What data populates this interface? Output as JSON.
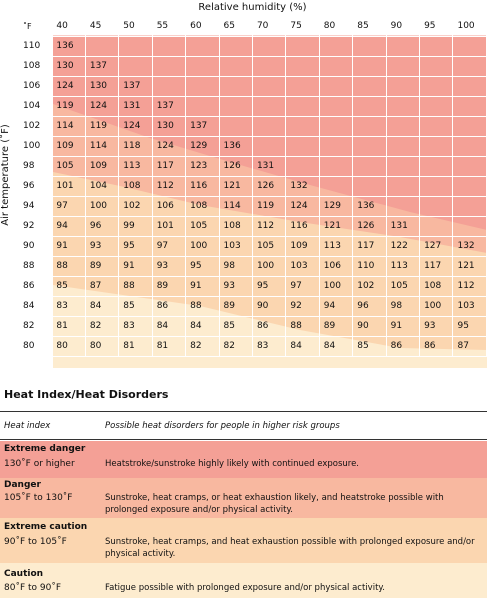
{
  "chart": {
    "x_axis_title": "Relative humidity (%)",
    "y_axis_title": "Air temperature (˚F)",
    "corner_label": "˚F",
    "humidity": [
      "40",
      "45",
      "50",
      "55",
      "60",
      "65",
      "70",
      "75",
      "80",
      "85",
      "90",
      "95",
      "100"
    ],
    "temperatures": [
      "110",
      "108",
      "106",
      "104",
      "102",
      "100",
      "98",
      "96",
      "94",
      "92",
      "90",
      "88",
      "86",
      "84",
      "82",
      "80"
    ],
    "rows": [
      [
        "136",
        "",
        "",
        "",
        "",
        "",
        "",
        "",
        "",
        "",
        "",
        "",
        ""
      ],
      [
        "130",
        "137",
        "",
        "",
        "",
        "",
        "",
        "",
        "",
        "",
        "",
        "",
        ""
      ],
      [
        "124",
        "130",
        "137",
        "",
        "",
        "",
        "",
        "",
        "",
        "",
        "",
        "",
        ""
      ],
      [
        "119",
        "124",
        "131",
        "137",
        "",
        "",
        "",
        "",
        "",
        "",
        "",
        "",
        ""
      ],
      [
        "114",
        "119",
        "124",
        "130",
        "137",
        "",
        "",
        "",
        "",
        "",
        "",
        "",
        ""
      ],
      [
        "109",
        "114",
        "118",
        "124",
        "129",
        "136",
        "",
        "",
        "",
        "",
        "",
        "",
        ""
      ],
      [
        "105",
        "109",
        "113",
        "117",
        "123",
        "126",
        "131",
        "",
        "",
        "",
        "",
        "",
        ""
      ],
      [
        "101",
        "104",
        "108",
        "112",
        "116",
        "121",
        "126",
        "132",
        "",
        "",
        "",
        "",
        ""
      ],
      [
        "97",
        "100",
        "102",
        "106",
        "108",
        "114",
        "119",
        "124",
        "129",
        "136",
        "",
        "",
        ""
      ],
      [
        "94",
        "96",
        "99",
        "101",
        "105",
        "108",
        "112",
        "116",
        "121",
        "126",
        "131",
        "",
        ""
      ],
      [
        "91",
        "93",
        "95",
        "97",
        "100",
        "103",
        "105",
        "109",
        "113",
        "117",
        "122",
        "127",
        "132"
      ],
      [
        "88",
        "89",
        "91",
        "93",
        "95",
        "98",
        "100",
        "103",
        "106",
        "110",
        "113",
        "117",
        "121"
      ],
      [
        "85",
        "87",
        "88",
        "89",
        "91",
        "93",
        "95",
        "97",
        "100",
        "102",
        "105",
        "108",
        "112"
      ],
      [
        "83",
        "84",
        "85",
        "86",
        "88",
        "89",
        "90",
        "92",
        "94",
        "96",
        "98",
        "100",
        "103"
      ],
      [
        "81",
        "82",
        "83",
        "84",
        "84",
        "85",
        "86",
        "88",
        "89",
        "90",
        "91",
        "93",
        "95"
      ],
      [
        "80",
        "80",
        "81",
        "81",
        "82",
        "82",
        "83",
        "84",
        "84",
        "85",
        "86",
        "86",
        "87"
      ]
    ],
    "colors": {
      "extreme_danger": "#f4a096",
      "danger": "#f8b8a0",
      "extreme_caution": "#fbd6b0",
      "caution": "#fdeccf"
    }
  },
  "disorders": {
    "title": "Heat Index/Heat Disorders",
    "col_heat_index": "Heat index",
    "col_disorders": "Possible heat disorders for people in higher risk groups",
    "levels": [
      {
        "name": "Extreme danger",
        "range": "130˚F or higher",
        "description": "Heatstroke/sunstroke highly likely with continued exposure.",
        "color": "#f4a096"
      },
      {
        "name": "Danger",
        "range": "105˚F to 130˚F",
        "description": "Sunstroke, heat cramps, or heat exhaustion likely, and heatstroke possible with prolonged exposure and/or physical activity.",
        "color": "#f8b8a0"
      },
      {
        "name": "Extreme caution",
        "range": "90˚F to 105˚F",
        "description": "Sunstroke, heat cramps, and heat exhaustion possible with prolonged exposure and/or physical activity.",
        "color": "#fbd6b0"
      },
      {
        "name": "Caution",
        "range": "80˚F to 90˚F",
        "description": "Fatigue possible with prolonged exposure and/or physical activity.",
        "color": "#fdeccf"
      }
    ]
  }
}
